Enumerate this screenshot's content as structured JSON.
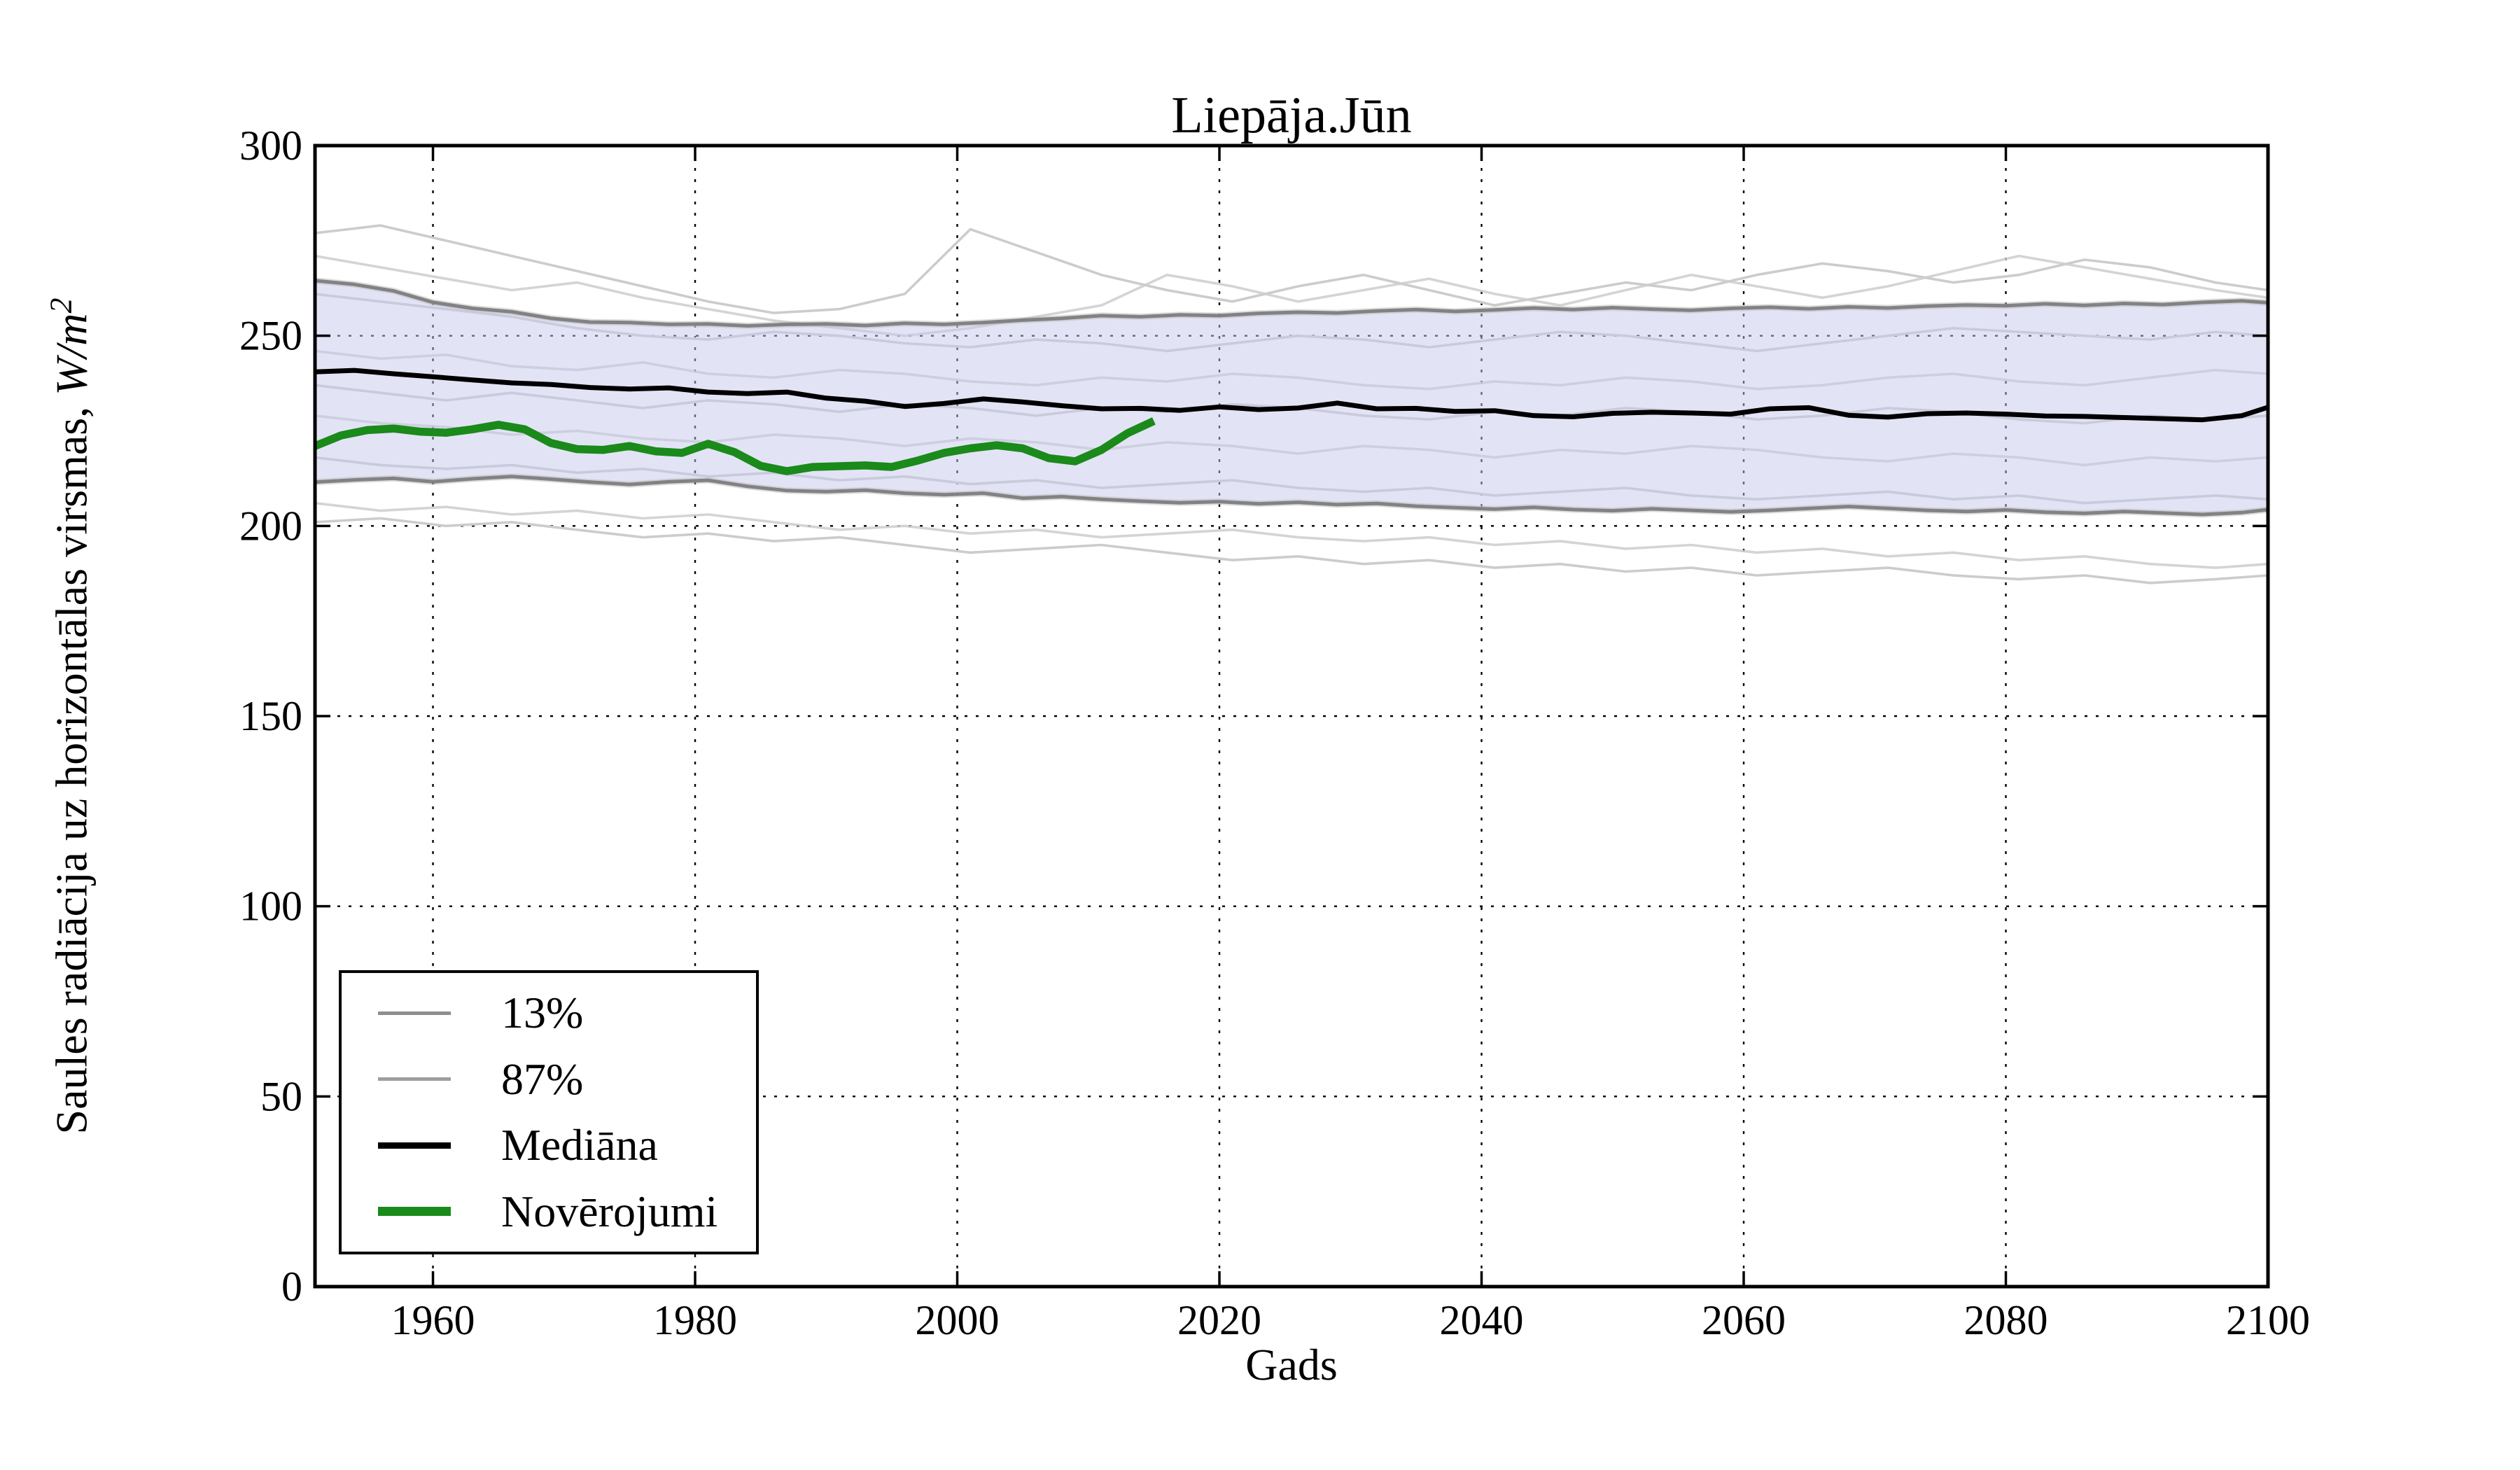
{
  "title": "Liepāja.Jūn",
  "axes": {
    "xlabel": "Gads",
    "ylabel_prefix": "Saules radiācija uz horizontālas virsmas, ",
    "ylabel_math": "W/m",
    "ylabel_exp": "2",
    "xlim": [
      1951,
      2100
    ],
    "ylim": [
      0,
      300
    ],
    "x_ticks": [
      1960,
      1980,
      2000,
      2020,
      2040,
      2060,
      2080,
      2100
    ],
    "y_ticks": [
      0,
      50,
      100,
      150,
      200,
      250,
      300
    ],
    "grid_style": "dotted"
  },
  "legend": {
    "items": [
      {
        "label": "13%",
        "color": "#8e8e8e",
        "line_width": 5
      },
      {
        "label": "87%",
        "color": "#9e9e9e",
        "line_width": 5
      },
      {
        "label": "Mediāna",
        "color": "#000000",
        "line_width": 9
      },
      {
        "label": "Novērojumi",
        "color": "#1a8a1a",
        "line_width": 13
      }
    ]
  },
  "colors": {
    "band_fill": "rgba(200,200,238,0.5)",
    "band_edge": "#7d7d7d",
    "band_edge_halo": "#bbbbbb",
    "ensemble_line": "#cccccc",
    "median_line": "#000000",
    "observations_line": "#1a8a1a",
    "grid_line": "#000000",
    "spine": "#000000"
  },
  "chart_data": {
    "type": "line",
    "title": "Liepāja.Jūn",
    "xlabel": "Gads",
    "ylabel": "Saules radiācija uz horizontālas virsmas, W/m2",
    "xlim": [
      1951,
      2100
    ],
    "ylim": [
      0,
      300
    ],
    "legend_position": "lower left",
    "grid": true,
    "band": {
      "name": "13-87% percentile band",
      "years": [
        1951,
        1954,
        1957,
        1960,
        1963,
        1966,
        1969,
        1972,
        1975,
        1978,
        1981,
        1984,
        1987,
        1990,
        1993,
        1996,
        1999,
        2002,
        2005,
        2008,
        2011,
        2014,
        2017,
        2020,
        2023,
        2026,
        2029,
        2032,
        2035,
        2038,
        2041,
        2044,
        2047,
        2050,
        2053,
        2056,
        2059,
        2062,
        2065,
        2068,
        2071,
        2074,
        2077,
        2080,
        2083,
        2086,
        2089,
        2092,
        2095,
        2098,
        2100
      ],
      "upper_87": [
        264.5,
        263.5,
        261.8,
        258.8,
        257.2,
        256.3,
        254.6,
        253.6,
        253.5,
        253.0,
        253.1,
        252.6,
        253.0,
        253.1,
        252.7,
        253.3,
        253.0,
        253.5,
        254.1,
        254.6,
        255.3,
        255.0,
        255.5,
        255.3,
        255.9,
        256.2,
        256.0,
        256.5,
        256.9,
        256.4,
        256.8,
        257.3,
        256.9,
        257.4,
        257.0,
        256.7,
        257.2,
        257.5,
        257.1,
        257.6,
        257.3,
        257.8,
        258.1,
        257.9,
        258.4,
        258.0,
        258.5,
        258.2,
        258.8,
        259.2,
        258.7
      ],
      "lower_13": [
        211.5,
        212.1,
        212.5,
        211.6,
        212.4,
        213.0,
        212.3,
        211.5,
        210.9,
        211.6,
        212.0,
        210.4,
        209.3,
        209.0,
        209.4,
        208.6,
        208.2,
        208.6,
        207.3,
        207.7,
        207.0,
        206.5,
        206.1,
        206.4,
        205.8,
        206.2,
        205.6,
        205.9,
        205.2,
        204.8,
        204.4,
        204.9,
        204.3,
        204.0,
        204.5,
        204.1,
        203.7,
        204.1,
        204.6,
        205.1,
        204.6,
        204.1,
        203.8,
        204.2,
        203.6,
        203.3,
        203.8,
        203.4,
        203.0,
        203.5,
        204.3
      ]
    },
    "series": [
      {
        "name": "Mediāna",
        "years": [
          1951,
          1954,
          1957,
          1960,
          1963,
          1966,
          1969,
          1972,
          1975,
          1978,
          1981,
          1984,
          1987,
          1990,
          1993,
          1996,
          1999,
          2002,
          2005,
          2008,
          2011,
          2014,
          2017,
          2020,
          2023,
          2026,
          2029,
          2032,
          2035,
          2038,
          2041,
          2044,
          2047,
          2050,
          2053,
          2056,
          2059,
          2062,
          2065,
          2068,
          2071,
          2074,
          2077,
          2080,
          2083,
          2086,
          2089,
          2092,
          2095,
          2098,
          2100
        ],
        "values": [
          240.5,
          240.9,
          240.0,
          239.2,
          238.4,
          237.6,
          237.2,
          236.4,
          236.0,
          236.3,
          235.2,
          234.8,
          235.2,
          233.6,
          232.8,
          231.4,
          232.2,
          233.4,
          232.6,
          231.6,
          230.8,
          230.9,
          230.4,
          231.3,
          230.6,
          231.0,
          232.3,
          230.8,
          230.9,
          230.1,
          230.3,
          229.0,
          228.7,
          229.6,
          229.9,
          229.7,
          229.4,
          230.8,
          231.1,
          229.1,
          228.6,
          229.5,
          229.7,
          229.4,
          228.9,
          228.8,
          228.5,
          228.2,
          227.9,
          229.0,
          231.2
        ]
      },
      {
        "name": "Novērojumi",
        "years": [
          1951,
          1953,
          1955,
          1957,
          1959,
          1961,
          1963,
          1965,
          1967,
          1969,
          1971,
          1973,
          1975,
          1977,
          1979,
          1981,
          1983,
          1985,
          1987,
          1989,
          1991,
          1993,
          1995,
          1997,
          1999,
          2001,
          2003,
          2005,
          2007,
          2009,
          2011,
          2013,
          2015
        ],
        "values": [
          221.0,
          223.8,
          225.2,
          225.6,
          224.8,
          224.5,
          225.4,
          226.6,
          225.4,
          221.8,
          220.2,
          220.0,
          221.0,
          219.6,
          219.2,
          221.6,
          219.4,
          215.8,
          214.4,
          215.5,
          215.7,
          215.9,
          215.5,
          217.2,
          219.2,
          220.4,
          221.2,
          220.4,
          217.8,
          217.0,
          220.0,
          224.4,
          227.6
        ]
      }
    ],
    "ensemble_members": {
      "years": [
        1951,
        1956,
        1961,
        1966,
        1971,
        1976,
        1981,
        1986,
        1991,
        1996,
        2001,
        2006,
        2011,
        2016,
        2021,
        2026,
        2031,
        2036,
        2041,
        2046,
        2051,
        2056,
        2061,
        2066,
        2071,
        2076,
        2081,
        2086,
        2091,
        2096,
        2100
      ],
      "members": [
        [
          277,
          279,
          275,
          271,
          267,
          263,
          259,
          256,
          257,
          261,
          278,
          272,
          266,
          262,
          259,
          263,
          266,
          262,
          258,
          261,
          264,
          262,
          266,
          269,
          267,
          264,
          266,
          270,
          268,
          264,
          262
        ],
        [
          271,
          268,
          265,
          262,
          264,
          260,
          257,
          254,
          252,
          250,
          252,
          255,
          258,
          266,
          263,
          259,
          262,
          265,
          261,
          258,
          262,
          266,
          263,
          260,
          263,
          267,
          271,
          268,
          265,
          262,
          260
        ],
        [
          261,
          259,
          257,
          255,
          252,
          250,
          249,
          251,
          250,
          248,
          247,
          249,
          248,
          246,
          248,
          250,
          249,
          247,
          249,
          251,
          250,
          248,
          246,
          248,
          250,
          252,
          251,
          250,
          249,
          251,
          250
        ],
        [
          246,
          244,
          245,
          242,
          241,
          243,
          240,
          239,
          241,
          240,
          238,
          237,
          239,
          238,
          240,
          239,
          237,
          236,
          238,
          237,
          239,
          238,
          236,
          237,
          239,
          240,
          238,
          237,
          239,
          241,
          240
        ],
        [
          237,
          235,
          233,
          235,
          233,
          231,
          233,
          232,
          230,
          232,
          231,
          229,
          231,
          230,
          232,
          231,
          229,
          228,
          230,
          229,
          231,
          230,
          228,
          229,
          231,
          230,
          228,
          227,
          229,
          228,
          229
        ],
        [
          229,
          227,
          226,
          224,
          225,
          223,
          222,
          224,
          223,
          221,
          223,
          222,
          220,
          222,
          221,
          219,
          221,
          220,
          218,
          220,
          219,
          221,
          220,
          218,
          217,
          219,
          218,
          216,
          218,
          217,
          218
        ],
        [
          218,
          216,
          215,
          216,
          214,
          215,
          213,
          214,
          212,
          213,
          211,
          212,
          210,
          211,
          212,
          210,
          209,
          210,
          208,
          209,
          210,
          208,
          207,
          208,
          209,
          207,
          208,
          206,
          207,
          208,
          207
        ],
        [
          206,
          204,
          205,
          203,
          204,
          202,
          203,
          201,
          199,
          200,
          198,
          199,
          197,
          198,
          199,
          197,
          196,
          197,
          195,
          196,
          194,
          195,
          193,
          194,
          192,
          193,
          191,
          192,
          190,
          189,
          190
        ],
        [
          201,
          202,
          200,
          201,
          199,
          197,
          198,
          196,
          197,
          195,
          193,
          194,
          195,
          193,
          191,
          192,
          190,
          191,
          189,
          190,
          188,
          189,
          187,
          188,
          189,
          187,
          186,
          187,
          185,
          186,
          187
        ]
      ]
    }
  }
}
